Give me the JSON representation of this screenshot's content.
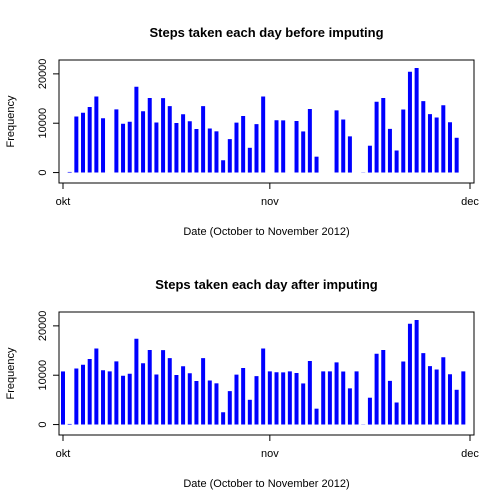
{
  "chart_data": [
    {
      "type": "bar",
      "title": "Steps taken each day before imputing",
      "xlabel": "Date (October to November 2012)",
      "ylabel": "Frequency",
      "x_start": "2012-10-01",
      "x_ticks": [
        "okt",
        "nov",
        "dec"
      ],
      "y_ticks": [
        0,
        10000,
        20000
      ],
      "ylim": [
        0,
        22000
      ],
      "bar_color": "#0000ff",
      "grid": false,
      "values": [
        0,
        126,
        11352,
        12116,
        13294,
        15420,
        11015,
        0,
        12811,
        9900,
        10304,
        17382,
        12426,
        15098,
        10139,
        15084,
        13452,
        10056,
        11829,
        10395,
        8821,
        13460,
        8918,
        8355,
        2492,
        6778,
        10119,
        11458,
        5018,
        9819,
        15414,
        0,
        10600,
        10571,
        0,
        10439,
        8334,
        12883,
        3219,
        0,
        0,
        12608,
        10765,
        7336,
        0,
        41,
        5441,
        14339,
        15110,
        8841,
        4472,
        12787,
        20427,
        21194,
        14478,
        11834,
        11162,
        13646,
        10183,
        7047,
        0
      ]
    },
    {
      "type": "bar",
      "title": "Steps taken each day after imputing",
      "xlabel": "Date (October to November 2012)",
      "ylabel": "Frequency",
      "x_start": "2012-10-01",
      "x_ticks": [
        "okt",
        "nov",
        "dec"
      ],
      "y_ticks": [
        0,
        10000,
        20000
      ],
      "ylim": [
        0,
        22000
      ],
      "bar_color": "#0000ff",
      "grid": false,
      "values": [
        10766,
        126,
        11352,
        12116,
        13294,
        15420,
        11015,
        10766,
        12811,
        9900,
        10304,
        17382,
        12426,
        15098,
        10139,
        15084,
        13452,
        10056,
        11829,
        10395,
        8821,
        13460,
        8918,
        8355,
        2492,
        6778,
        10119,
        11458,
        5018,
        9819,
        15414,
        10766,
        10600,
        10571,
        10766,
        10439,
        8334,
        12883,
        3219,
        10766,
        10766,
        12608,
        10765,
        7336,
        10766,
        41,
        5441,
        14339,
        15110,
        8841,
        4472,
        12787,
        20427,
        21194,
        14478,
        11834,
        11162,
        13646,
        10183,
        7047,
        10766
      ]
    }
  ]
}
